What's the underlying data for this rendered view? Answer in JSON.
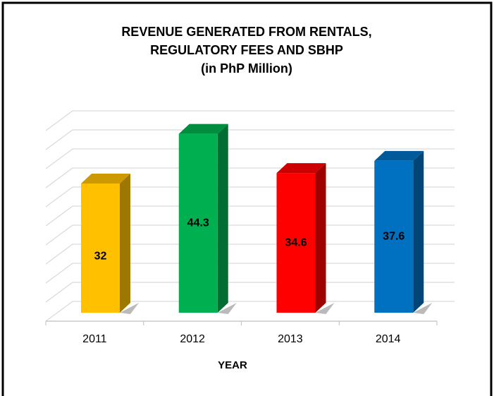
{
  "chart_data": {
    "type": "bar3d",
    "title": [
      "REVENUE GENERATED FROM RENTALS,",
      "REGULATORY FEES AND SBHP",
      "(in PhP Million)"
    ],
    "x_label": "YEAR",
    "categories": [
      "2011",
      "2012",
      "2013",
      "2014"
    ],
    "values": [
      32,
      44.3,
      34.6,
      37.6
    ],
    "colors": [
      "#ffc000",
      "#00b050",
      "#ff0000",
      "#0070c0"
    ],
    "ylim": [
      0,
      50
    ],
    "yticks": [
      0,
      5,
      10,
      15,
      20,
      25,
      30,
      35,
      40,
      45,
      50
    ],
    "grid": true
  }
}
